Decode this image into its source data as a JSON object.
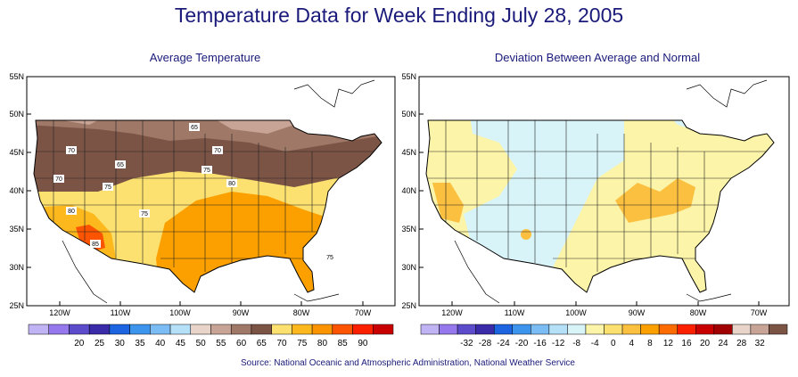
{
  "title": "Temperature Data for Week Ending July 28, 2005",
  "source": "Source:  National Oceanic and Atmospheric Administration, National Weather Service",
  "maps": [
    {
      "title": "Average Temperature",
      "lat_labels": [
        "55N",
        "50N",
        "45N",
        "40N",
        "35N",
        "30N",
        "25N"
      ],
      "lon_labels": [
        "120W",
        "110W",
        "100W",
        "90W",
        "80W",
        "70W"
      ],
      "legend": {
        "colors": [
          "#c0b4f4",
          "#9478ec",
          "#5c4ccc",
          "#3a2ca8",
          "#1c64e0",
          "#3c94ec",
          "#7cbcf4",
          "#b4e0f8",
          "#e8d4c8",
          "#c8a496",
          "#a07868",
          "#7c5446",
          "#fce070",
          "#fcb81c",
          "#fc9400",
          "#fc5400",
          "#fc2000",
          "#c80000"
        ],
        "labels": [
          "20",
          "25",
          "30",
          "35",
          "40",
          "45",
          "50",
          "55",
          "60",
          "65",
          "70",
          "75",
          "80",
          "85",
          "90"
        ]
      },
      "contour_labels": [
        "70",
        "65",
        "70",
        "65",
        "75",
        "70",
        "75",
        "80",
        "80",
        "75",
        "85",
        "75"
      ],
      "regions": [
        {
          "name": "northern-band",
          "color": "#c8a496"
        },
        {
          "name": "cool-belt",
          "color": "#a07868"
        },
        {
          "name": "warm-central",
          "color": "#fce070"
        },
        {
          "name": "hot-south",
          "color": "#fcb81c"
        },
        {
          "name": "hottest-southwest",
          "color": "#fc9400"
        },
        {
          "name": "extreme-desert",
          "color": "#fc5400"
        }
      ]
    },
    {
      "title": "Deviation Between Average and Normal",
      "lat_labels": [
        "55N",
        "50N",
        "45N",
        "40N",
        "35N",
        "30N",
        "25N"
      ],
      "lon_labels": [
        "120W",
        "110W",
        "100W",
        "90W",
        "80W",
        "70W"
      ],
      "legend": {
        "colors": [
          "#c0b4f4",
          "#9478ec",
          "#5c4ccc",
          "#3a2ca8",
          "#1c64e0",
          "#3c94ec",
          "#7cbcf4",
          "#b4e0f8",
          "#d8f4f8",
          "#fcf4a8",
          "#fce070",
          "#fcc040",
          "#fca000",
          "#fc6c00",
          "#fc2000",
          "#c80000",
          "#a00000",
          "#e8d4c8",
          "#c8a496",
          "#7c5446"
        ],
        "labels": [
          "-32",
          "-28",
          "-24",
          "-20",
          "-16",
          "-12",
          "-8",
          "-4",
          "0",
          "4",
          "8",
          "12",
          "16",
          "20",
          "24",
          "28",
          "32"
        ]
      },
      "regions": [
        {
          "name": "neutral-base",
          "color": "#fcf4a8"
        },
        {
          "name": "cool-anomaly",
          "color": "#d8f4f8"
        },
        {
          "name": "warm-anomaly",
          "color": "#fcc040"
        }
      ]
    }
  ]
}
